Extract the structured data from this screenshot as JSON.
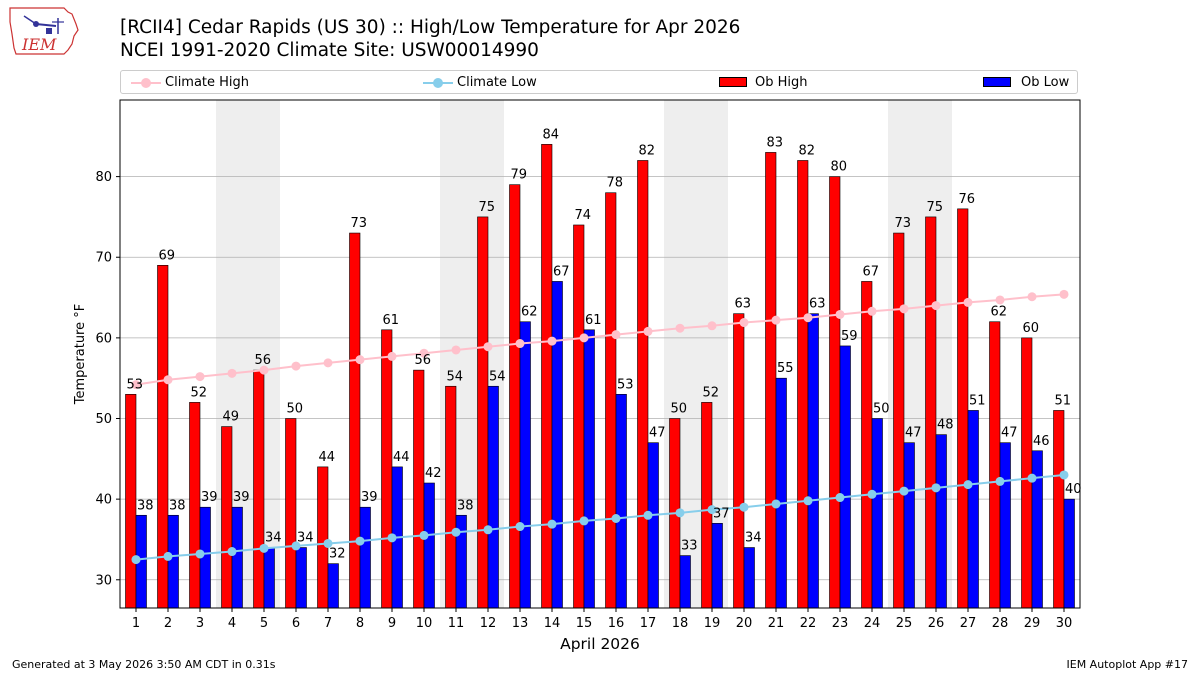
{
  "header": {
    "title_line1": "[RCII4] Cedar Rapids (US 30) :: High/Low Temperature for Apr 2026",
    "title_line2": "NCEI 1991-2020 Climate Site: USW00014990",
    "logo_text": "IEM"
  },
  "legend": {
    "items": [
      {
        "label": "Climate High",
        "kind": "line",
        "color": "#ffc0cb"
      },
      {
        "label": "Climate Low",
        "kind": "line",
        "color": "#87ceeb"
      },
      {
        "label": "Ob High",
        "kind": "bar",
        "color": "#ff0000"
      },
      {
        "label": "Ob Low",
        "kind": "bar",
        "color": "#0000ff"
      }
    ]
  },
  "footer": {
    "generated": "Generated at 3 May 2026 3:50 AM CDT in 0.31s",
    "app": "IEM Autoplot App #17"
  },
  "chart_data": {
    "type": "bar",
    "xlabel": "April 2026",
    "ylabel": "Temperature °F",
    "ylim": [
      26.5,
      89.5
    ],
    "yticks": [
      30,
      40,
      50,
      60,
      70,
      80
    ],
    "grid": "horizontal",
    "legend_position": "top",
    "weekend_shading_color": "#eeeeee",
    "weekend_days": [
      4,
      5,
      11,
      12,
      18,
      19,
      25,
      26
    ],
    "categories": [
      "1",
      "2",
      "3",
      "4",
      "5",
      "6",
      "7",
      "8",
      "9",
      "10",
      "11",
      "12",
      "13",
      "14",
      "15",
      "16",
      "17",
      "18",
      "19",
      "20",
      "21",
      "22",
      "23",
      "24",
      "25",
      "26",
      "27",
      "28",
      "29",
      "30"
    ],
    "series": [
      {
        "name": "Ob High",
        "type": "bar",
        "color": "#ff0000",
        "values": [
          53,
          69,
          52,
          49,
          56,
          50,
          44,
          73,
          61,
          56,
          54,
          75,
          79,
          84,
          74,
          78,
          82,
          50,
          52,
          63,
          83,
          82,
          80,
          67,
          73,
          75,
          76,
          62,
          60,
          51
        ]
      },
      {
        "name": "Ob Low",
        "type": "bar",
        "color": "#0000ff",
        "values": [
          38,
          38,
          39,
          39,
          34,
          34,
          32,
          39,
          44,
          42,
          38,
          54,
          62,
          67,
          61,
          53,
          47,
          33,
          37,
          34,
          55,
          63,
          59,
          50,
          47,
          48,
          51,
          47,
          46,
          40
        ]
      },
      {
        "name": "Climate High",
        "type": "line",
        "color": "#ffc0cb",
        "values": [
          54.2,
          54.8,
          55.2,
          55.6,
          56.0,
          56.5,
          56.9,
          57.3,
          57.7,
          58.1,
          58.5,
          58.9,
          59.3,
          59.6,
          60.0,
          60.4,
          60.8,
          61.2,
          61.5,
          61.9,
          62.2,
          62.5,
          62.9,
          63.3,
          63.6,
          64.0,
          64.4,
          64.7,
          65.1,
          65.4
        ]
      },
      {
        "name": "Climate Low",
        "type": "line",
        "color": "#87ceeb",
        "values": [
          32.5,
          32.9,
          33.2,
          33.5,
          33.9,
          34.2,
          34.5,
          34.8,
          35.2,
          35.5,
          35.9,
          36.2,
          36.6,
          36.9,
          37.3,
          37.6,
          38.0,
          38.3,
          38.7,
          39.0,
          39.4,
          39.8,
          40.2,
          40.6,
          41.0,
          41.4,
          41.8,
          42.2,
          42.6,
          43.0
        ]
      }
    ]
  }
}
